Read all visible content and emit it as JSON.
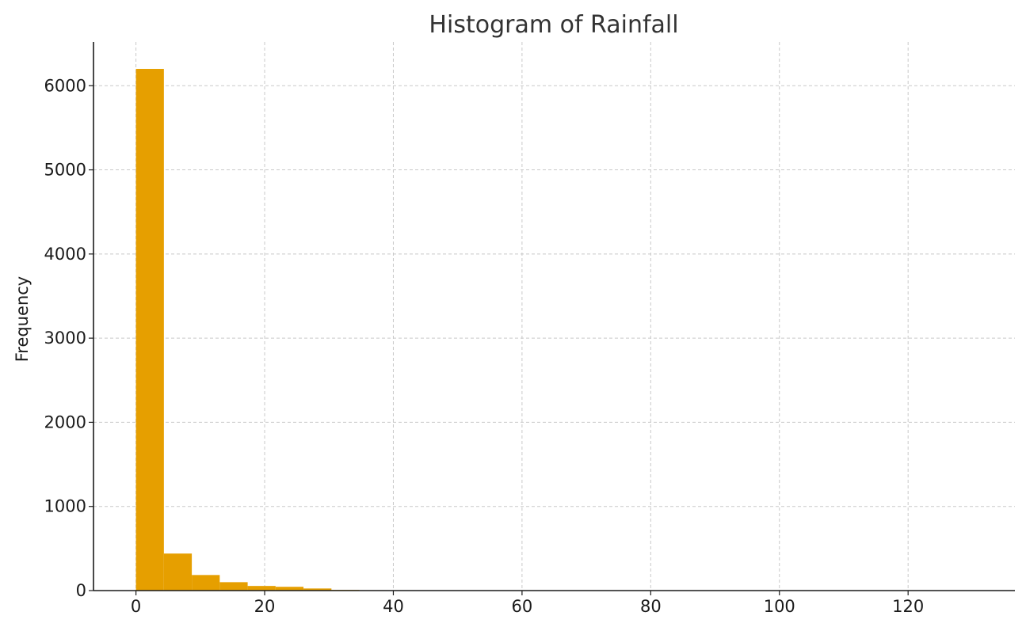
{
  "chart_data": {
    "type": "bar",
    "title": "Histogram of Rainfall",
    "xlabel": "",
    "ylabel": "Frequency",
    "xlim": [
      -6.6,
      136.6
    ],
    "ylim": [
      0,
      6520
    ],
    "x_ticks": [
      0,
      20,
      40,
      60,
      80,
      100,
      120
    ],
    "y_ticks": [
      0,
      1000,
      2000,
      3000,
      4000,
      5000,
      6000
    ],
    "grid": true,
    "bar_color": "#E69F00",
    "bins": [
      {
        "x0": 0.0,
        "x1": 4.34,
        "count": 6200
      },
      {
        "x0": 4.34,
        "x1": 8.68,
        "count": 440
      },
      {
        "x0": 8.68,
        "x1": 13.02,
        "count": 185
      },
      {
        "x0": 13.02,
        "x1": 17.36,
        "count": 100
      },
      {
        "x0": 17.36,
        "x1": 21.7,
        "count": 55
      },
      {
        "x0": 21.7,
        "x1": 26.04,
        "count": 45
      },
      {
        "x0": 26.04,
        "x1": 30.38,
        "count": 25
      },
      {
        "x0": 30.38,
        "x1": 34.72,
        "count": 8
      },
      {
        "x0": 34.72,
        "x1": 39.06,
        "count": 5
      },
      {
        "x0": 39.06,
        "x1": 43.4,
        "count": 3
      },
      {
        "x0": 43.4,
        "x1": 47.74,
        "count": 2
      },
      {
        "x0": 47.74,
        "x1": 52.08,
        "count": 2
      },
      {
        "x0": 52.08,
        "x1": 56.42,
        "count": 1
      },
      {
        "x0": 56.42,
        "x1": 60.76,
        "count": 1
      },
      {
        "x0": 60.76,
        "x1": 65.1,
        "count": 1
      },
      {
        "x0": 65.1,
        "x1": 69.44,
        "count": 0
      },
      {
        "x0": 69.44,
        "x1": 73.78,
        "count": 1
      },
      {
        "x0": 73.78,
        "x1": 78.12,
        "count": 0
      },
      {
        "x0": 78.12,
        "x1": 82.46,
        "count": 0
      },
      {
        "x0": 82.46,
        "x1": 86.8,
        "count": 1
      },
      {
        "x0": 86.8,
        "x1": 91.14,
        "count": 0
      },
      {
        "x0": 91.14,
        "x1": 95.48,
        "count": 0
      },
      {
        "x0": 95.48,
        "x1": 99.82,
        "count": 0
      },
      {
        "x0": 99.82,
        "x1": 104.16,
        "count": 0
      },
      {
        "x0": 104.16,
        "x1": 108.5,
        "count": 0
      },
      {
        "x0": 108.5,
        "x1": 112.84,
        "count": 0
      },
      {
        "x0": 112.84,
        "x1": 117.18,
        "count": 0
      },
      {
        "x0": 117.18,
        "x1": 121.52,
        "count": 0
      },
      {
        "x0": 121.52,
        "x1": 125.86,
        "count": 0
      },
      {
        "x0": 125.86,
        "x1": 130.2,
        "count": 1
      }
    ]
  }
}
